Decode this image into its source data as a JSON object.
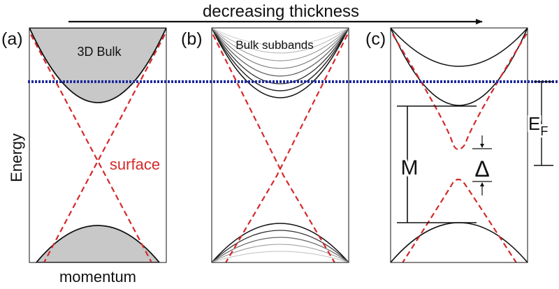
{
  "title": "decreasing thickness",
  "panels": [
    {
      "tag": "(a)",
      "label": "3D Bulk"
    },
    {
      "tag": "(b)",
      "label": "Bulk subbands"
    },
    {
      "tag": "(c)",
      "label": ""
    }
  ],
  "axes": {
    "y": "Energy",
    "x": "momentum"
  },
  "annotations": {
    "surface": "surface",
    "gap_M": "M",
    "gap_delta": "Δ",
    "fermi_main": "E",
    "fermi_sub": "F"
  },
  "colors": {
    "surface_state": "#d42a2a",
    "fermi_level": "#1c2a9c",
    "bulk_fill": "#c8c8c8",
    "line": "#111111"
  }
}
